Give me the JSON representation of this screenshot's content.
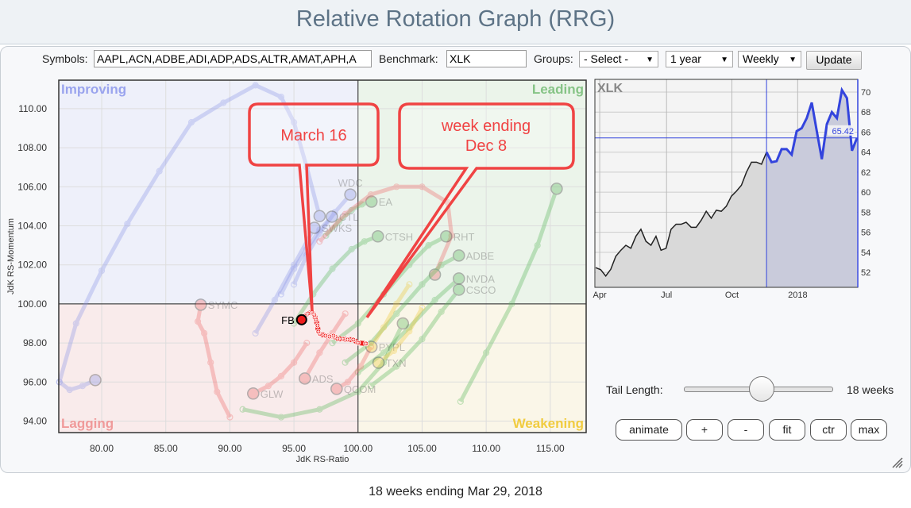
{
  "header": {
    "title": "Relative Rotation Graph (RRG)"
  },
  "toolbar": {
    "symbols_label": "Symbols:",
    "symbols_value": "AAPL,ACN,ADBE,ADI,ADP,ADS,ALTR,AMAT,APH,A",
    "benchmark_label": "Benchmark:",
    "benchmark_value": "XLK",
    "groups_label": "Groups:",
    "groups_value": "- Select -",
    "period_value": "1 year",
    "frequency_value": "Weekly",
    "update_label": "Update"
  },
  "rrg": {
    "quadrants": {
      "improving": "Improving",
      "leading": "Leading",
      "lagging": "Lagging",
      "weakening": "Weakening"
    },
    "quadrant_colors": {
      "improving": "#eef0fa",
      "leading": "#ebf4ea",
      "lagging": "#f9ebeb",
      "weakening": "#faf6e8"
    },
    "quadrant_label_colors": {
      "improving": "#9aa4ee",
      "leading": "#86c486",
      "lagging": "#f09a9a",
      "weakening": "#f1cc40"
    },
    "tail_colors": {
      "improving": "#8f98e8",
      "leading": "#5cb85c",
      "lagging": "#ee6b6b",
      "weakening": "#f0c93a"
    },
    "xlabel": "JdK RS-Ratio",
    "ylabel": "JdK RS-Momentum",
    "xlim": [
      76.65,
      117.8
    ],
    "ylim": [
      93.41,
      111.46
    ],
    "xticks": [
      "80.00",
      "85.00",
      "90.00",
      "95.00",
      "100.00",
      "105.00",
      "110.00",
      "115.00"
    ],
    "yticks": [
      "94.00",
      "96.00",
      "98.00",
      "100.00",
      "102.00",
      "104.00",
      "106.00",
      "108.00",
      "110.00"
    ],
    "tails": [
      {
        "quadrant": "improving",
        "points": [
          [
            76.7,
            96
          ],
          [
            78,
            99
          ],
          [
            80,
            101.7
          ],
          [
            82,
            104.1
          ],
          [
            84.5,
            106.8
          ],
          [
            87,
            109.3
          ],
          [
            89.5,
            110.3
          ],
          [
            92,
            111.2
          ],
          [
            94,
            110.6
          ],
          [
            95,
            109.3
          ],
          [
            96,
            107
          ],
          [
            97,
            104.5
          ]
        ]
      },
      {
        "quadrant": "improving",
        "points": [
          [
            76.7,
            96
          ],
          [
            77.5,
            95.6
          ],
          [
            78.5,
            95.8
          ],
          [
            79.5,
            96.1
          ]
        ]
      },
      {
        "name": "WDC",
        "quadrant": "improving",
        "points": [
          [
            95,
            101
          ],
          [
            96,
            102.5
          ],
          [
            97,
            103.6
          ],
          [
            98.2,
            104.7
          ],
          [
            99.4,
            105.6
          ]
        ]
      },
      {
        "name": "CTL",
        "quadrant": "improving",
        "points": [
          [
            94,
            100.5
          ],
          [
            95,
            101.8
          ],
          [
            96,
            102.8
          ],
          [
            97,
            103.8
          ],
          [
            97.96,
            104.47
          ]
        ]
      },
      {
        "name": "SWKS",
        "quadrant": "improving",
        "points": [
          [
            92,
            98.5
          ],
          [
            93.5,
            100.2
          ],
          [
            95,
            102
          ],
          [
            96.6,
            103.9
          ]
        ]
      },
      {
        "name": "EA",
        "quadrant": "leading",
        "points": [
          [
            97.5,
            103.5
          ],
          [
            98.5,
            104.2
          ],
          [
            99.5,
            104.8
          ],
          [
            100.3,
            105.1
          ],
          [
            101.05,
            105.24
          ]
        ]
      },
      {
        "quadrant": "lagging",
        "points": [
          [
            97,
            103.2
          ],
          [
            99,
            104.6
          ],
          [
            101,
            105.6
          ],
          [
            103,
            106
          ],
          [
            105,
            106
          ],
          [
            107,
            105.2
          ],
          [
            107.3,
            103.5
          ],
          [
            106,
            101.5
          ]
        ]
      },
      {
        "name": "CTSH",
        "quadrant": "leading",
        "points": [
          [
            95,
            99
          ],
          [
            96.5,
            100.5
          ],
          [
            98,
            101.8
          ],
          [
            99.5,
            102.8
          ],
          [
            100.5,
            103.2
          ],
          [
            101.55,
            103.46
          ]
        ]
      },
      {
        "name": "RHT",
        "quadrant": "leading",
        "points": [
          [
            98,
            98
          ],
          [
            100,
            99
          ],
          [
            102,
            100.5
          ],
          [
            104,
            102
          ],
          [
            105.5,
            103
          ],
          [
            106.88,
            103.46
          ]
        ]
      },
      {
        "name": "ADBE",
        "quadrant": "leading",
        "points": [
          [
            99,
            97
          ],
          [
            101,
            98
          ],
          [
            103,
            99.5
          ],
          [
            105,
            101
          ],
          [
            106.5,
            102
          ],
          [
            107.87,
            102.48
          ]
        ]
      },
      {
        "name": "NVDA",
        "quadrant": "leading",
        "points": [
          [
            100,
            96.5
          ],
          [
            102,
            97.5
          ],
          [
            104,
            98.8
          ],
          [
            106,
            100.2
          ],
          [
            107.87,
            101.3
          ]
        ]
      },
      {
        "name": "CSCO",
        "quadrant": "leading",
        "points": [
          [
            101,
            95.8
          ],
          [
            103,
            96.8
          ],
          [
            105,
            98.2
          ],
          [
            106.5,
            99.6
          ],
          [
            107.87,
            100.73
          ]
        ]
      },
      {
        "quadrant": "leading",
        "points": [
          [
            108,
            95
          ],
          [
            110,
            97.5
          ],
          [
            112,
            100
          ],
          [
            114,
            103
          ],
          [
            115.5,
            105.9
          ]
        ]
      },
      {
        "quadrant": "leading",
        "points": [
          [
            91,
            94.6
          ],
          [
            94,
            94.2
          ],
          [
            97,
            94.6
          ],
          [
            100,
            95.5
          ],
          [
            102,
            97
          ],
          [
            103.5,
            99
          ]
        ]
      },
      {
        "name": "SYMC",
        "quadrant": "lagging",
        "points": [
          [
            90,
            94.2
          ],
          [
            89,
            95.5
          ],
          [
            88.5,
            97
          ],
          [
            88,
            98.5
          ],
          [
            87.5,
            99.1
          ],
          [
            87.73,
            99.96
          ]
        ]
      },
      {
        "name": "GLW",
        "quadrant": "lagging",
        "points": [
          [
            96,
            98
          ],
          [
            95,
            97
          ],
          [
            94,
            96.3
          ],
          [
            93,
            95.8
          ],
          [
            91.82,
            95.41
          ]
        ]
      },
      {
        "name": "ADS",
        "quadrant": "lagging",
        "points": [
          [
            99,
            99.5
          ],
          [
            98,
            98.5
          ],
          [
            97,
            97.5
          ],
          [
            95.85,
            96.18
          ]
        ]
      },
      {
        "name": "QCOM",
        "quadrant": "lagging",
        "points": [
          [
            101,
            97.8
          ],
          [
            100.2,
            96.8
          ],
          [
            99.2,
            96
          ],
          [
            98.33,
            95.65
          ]
        ]
      },
      {
        "name": "PYPL",
        "quadrant": "weakening",
        "points": [
          [
            104,
            101
          ],
          [
            103,
            100
          ],
          [
            102,
            98.8
          ],
          [
            101.05,
            97.8
          ]
        ]
      },
      {
        "name": "TXN",
        "quadrant": "weakening",
        "points": [
          [
            105,
            99.8
          ],
          [
            104,
            98.6
          ],
          [
            102.8,
            97.6
          ],
          [
            101.6,
            96.99
          ]
        ]
      }
    ],
    "highlight": {
      "name": "FB",
      "color": "#ee1c1c",
      "points": [
        [
          100.62,
          97.97
        ],
        [
          100.0,
          98.01
        ],
        [
          99.63,
          98.17
        ],
        [
          99.19,
          98.17
        ],
        [
          98.82,
          98.21
        ],
        [
          98.39,
          98.21
        ],
        [
          98.08,
          98.37
        ],
        [
          97.77,
          98.33
        ],
        [
          97.46,
          98.37
        ],
        [
          97.03,
          98.46
        ],
        [
          96.9,
          98.58
        ],
        [
          96.84,
          98.9
        ],
        [
          96.72,
          99.19
        ],
        [
          96.59,
          99.43
        ],
        [
          96.41,
          99.59
        ],
        [
          96.1,
          99.51
        ],
        [
          95.85,
          99.39
        ],
        [
          95.6,
          99.19
        ]
      ]
    },
    "callouts": [
      {
        "text_lines": [
          "March 16"
        ]
      },
      {
        "text_lines": [
          "week ending",
          "Dec 8"
        ]
      }
    ],
    "callout_color": "#f04343"
  },
  "benchmark_chart": {
    "symbol": "XLK",
    "last_value": "65.42",
    "ylim": [
      50.5,
      71.27
    ],
    "yticks": [
      "52",
      "54",
      "56",
      "58",
      "60",
      "62",
      "64",
      "66",
      "68",
      "70"
    ],
    "xticks": [
      {
        "label": "Apr",
        "index": 0.8
      },
      {
        "label": "Jul",
        "index": 14.1
      },
      {
        "label": "Oct",
        "index": 27.1
      },
      {
        "label": "2018",
        "index": 40.2
      }
    ],
    "tail_start_index": 34,
    "line_color": "#3344dd",
    "prices": [
      52.47,
      52.26,
      51.63,
      52.3,
      53.6,
      54.2,
      54.7,
      54.4,
      55.6,
      56.3,
      55.1,
      54.7,
      55.6,
      54.2,
      54.4,
      56.3,
      56.8,
      56.8,
      57.0,
      56.5,
      56.5,
      57.2,
      58.1,
      57.4,
      58.2,
      58.1,
      58.6,
      59.6,
      60.1,
      60.7,
      62.0,
      63.0,
      63.0,
      62.8,
      64.0,
      63.0,
      63.1,
      64.3,
      64.3,
      63.75,
      66.1,
      66.4,
      67.4,
      68.95,
      66.1,
      63.3,
      66.8,
      68.0,
      67.4,
      70.2,
      69.4,
      64.15,
      65.42
    ]
  },
  "controls": {
    "tail_length_label": "Tail Length:",
    "tail_length_value": "18 weeks",
    "tail_slider_fraction": 0.52,
    "buttons": [
      "animate",
      "+",
      "-",
      "fit",
      "ctr",
      "max"
    ]
  },
  "footer": {
    "text": "18 weeks ending Mar 29, 2018"
  }
}
